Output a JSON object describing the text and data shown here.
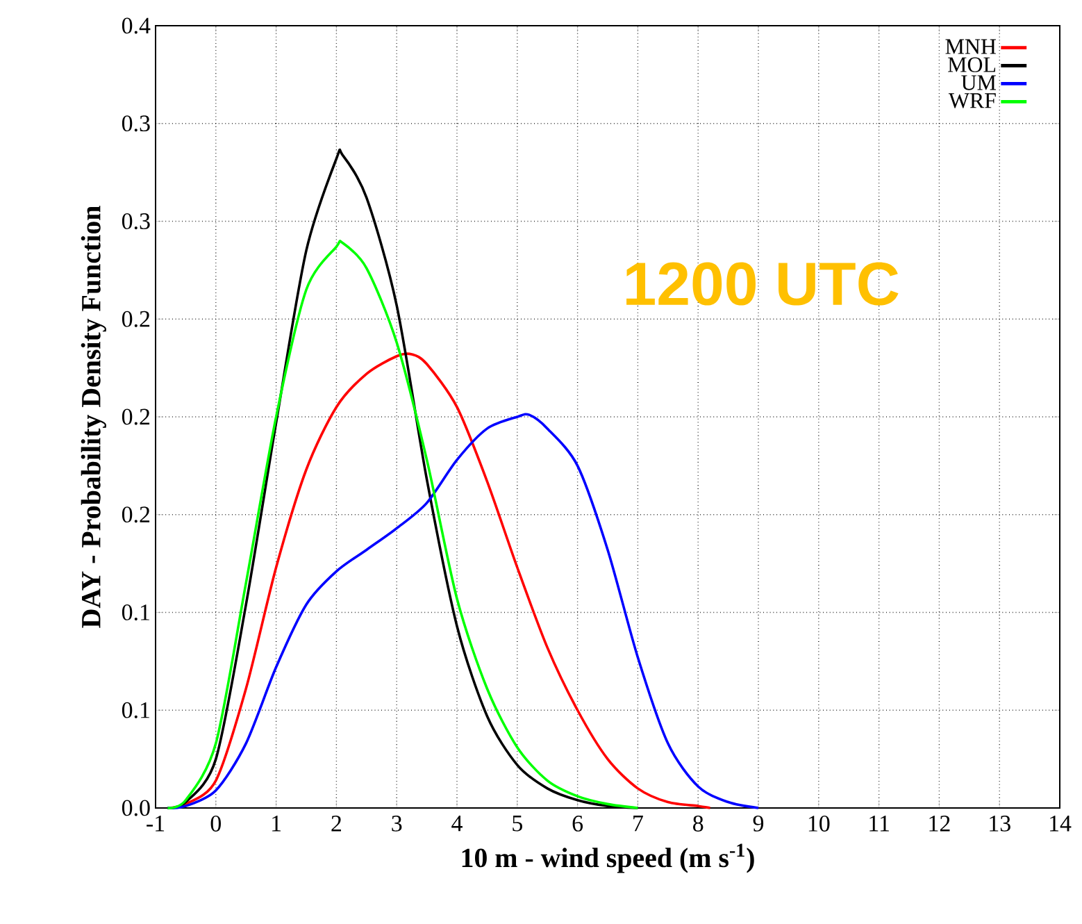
{
  "chart_data": {
    "type": "line",
    "xlabel": "10 m - wind speed (m s$^{-1}$)",
    "ylabel": "DAY - Probability Density Function",
    "annotations": [
      "1200 UTC"
    ],
    "xlim": [
      -1,
      14
    ],
    "xticks": [
      -1,
      0,
      1,
      2,
      3,
      4,
      5,
      6,
      7,
      8,
      9,
      10,
      11,
      12,
      13,
      14
    ],
    "ylim": [
      0,
      0.4
    ],
    "yticks": [
      {
        "value": 0,
        "label": "0.0"
      },
      {
        "value": 0.05,
        "label": "0.1"
      },
      {
        "value": 0.1,
        "label": "0.1"
      },
      {
        "value": 0.15,
        "label": "0.2"
      },
      {
        "value": 0.2,
        "label": "0.2"
      },
      {
        "value": 0.25,
        "label": "0.2"
      },
      {
        "value": 0.3,
        "label": "0.3"
      },
      {
        "value": 0.35,
        "label": "0.3"
      },
      {
        "value": 0.4,
        "label": "0.4"
      }
    ],
    "grid": true,
    "legend": "top right",
    "line_style": "solid",
    "series": [
      {
        "name": "MNH",
        "color": "#ff0000",
        "x": [
          -0.8,
          -0.5,
          0,
          0.5,
          1,
          1.5,
          2,
          2.5,
          3,
          3.25,
          3.5,
          4,
          4.5,
          5,
          5.5,
          6,
          6.5,
          7,
          7.5,
          8,
          8.2
        ],
        "values": [
          0,
          0.002,
          0.014,
          0.061,
          0.123,
          0.173,
          0.205,
          0.222,
          0.231,
          0.232,
          0.227,
          0.205,
          0.167,
          0.123,
          0.082,
          0.05,
          0.025,
          0.01,
          0.003,
          0.001,
          0
        ]
      },
      {
        "name": "MOL",
        "color": "#000000",
        "x": [
          -0.8,
          -0.5,
          0,
          0.5,
          1,
          1.5,
          2,
          2.1,
          2.5,
          3,
          3.5,
          4,
          4.5,
          5,
          5.5,
          6,
          6.5,
          7
        ],
        "values": [
          0,
          0.003,
          0.025,
          0.104,
          0.197,
          0.285,
          0.332,
          0.334,
          0.312,
          0.257,
          0.168,
          0.093,
          0.047,
          0.022,
          0.01,
          0.004,
          0.001,
          0
        ]
      },
      {
        "name": "UM",
        "color": "#0000ff",
        "x": [
          -0.8,
          -0.5,
          0,
          0.5,
          1,
          1.5,
          2,
          2.5,
          3,
          3.5,
          4,
          4.5,
          5,
          5.2,
          5.5,
          6,
          6.5,
          7,
          7.5,
          8,
          8.5,
          9
        ],
        "values": [
          0,
          0.001,
          0.009,
          0.033,
          0.072,
          0.104,
          0.121,
          0.132,
          0.143,
          0.156,
          0.178,
          0.194,
          0.2,
          0.201,
          0.194,
          0.175,
          0.132,
          0.077,
          0.033,
          0.011,
          0.003,
          0
        ]
      },
      {
        "name": "WRF",
        "color": "#00ff00",
        "x": [
          -0.8,
          -0.5,
          0,
          0.5,
          1,
          1.5,
          2,
          2.1,
          2.5,
          3,
          3.5,
          4,
          4.5,
          5,
          5.5,
          6,
          6.5,
          7
        ],
        "values": [
          0,
          0.004,
          0.033,
          0.115,
          0.2,
          0.265,
          0.287,
          0.289,
          0.276,
          0.238,
          0.178,
          0.107,
          0.061,
          0.031,
          0.014,
          0.006,
          0.002,
          0
        ]
      }
    ]
  }
}
